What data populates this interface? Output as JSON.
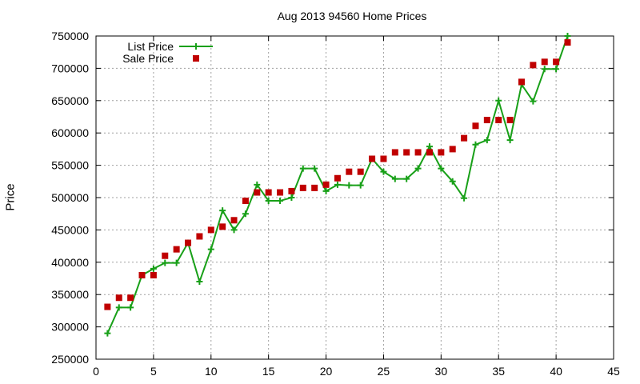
{
  "chart_data": {
    "type": "line",
    "title": "Aug 2013 94560 Home Prices",
    "xlabel": "",
    "ylabel": "Price",
    "xlim": [
      0,
      45
    ],
    "ylim": [
      250000,
      750000
    ],
    "x_ticks": [
      0,
      5,
      10,
      15,
      20,
      25,
      30,
      35,
      40,
      45
    ],
    "y_ticks": [
      250000,
      300000,
      350000,
      400000,
      450000,
      500000,
      550000,
      600000,
      650000,
      700000,
      750000
    ],
    "grid": true,
    "legend_position": "top-left",
    "series": [
      {
        "name": "List Price",
        "style": "line-with-plus-markers",
        "color": "#18a018",
        "x": [
          1,
          2,
          3,
          4,
          5,
          6,
          7,
          8,
          9,
          10,
          11,
          12,
          13,
          14,
          15,
          16,
          17,
          18,
          19,
          20,
          21,
          22,
          23,
          24,
          25,
          26,
          27,
          28,
          29,
          30,
          31,
          32,
          33,
          34,
          35,
          36,
          37,
          38,
          39,
          40,
          41
        ],
        "y": [
          290000,
          330000,
          330000,
          380000,
          390000,
          399000,
          399000,
          430000,
          370000,
          420000,
          480000,
          450000,
          475000,
          520000,
          495000,
          495000,
          500000,
          545000,
          545000,
          510000,
          520000,
          519000,
          519000,
          560000,
          540000,
          529000,
          529000,
          545000,
          579000,
          545000,
          525000,
          499000,
          582000,
          589000,
          650000,
          589000,
          675000,
          649000,
          699000,
          699000,
          750000
        ]
      },
      {
        "name": "Sale Price",
        "style": "square-markers",
        "color": "#c00000",
        "x": [
          1,
          2,
          3,
          4,
          5,
          6,
          7,
          8,
          9,
          10,
          11,
          12,
          13,
          14,
          15,
          16,
          17,
          18,
          19,
          20,
          21,
          22,
          23,
          24,
          25,
          26,
          27,
          28,
          29,
          30,
          31,
          32,
          33,
          34,
          35,
          36,
          37,
          38,
          39,
          40,
          41
        ],
        "y": [
          331000,
          345000,
          345000,
          380000,
          380000,
          410000,
          420000,
          430000,
          440000,
          450000,
          455000,
          465000,
          495000,
          508000,
          508000,
          508000,
          510000,
          515000,
          515000,
          520000,
          530000,
          540000,
          540000,
          560000,
          560000,
          570000,
          570000,
          570000,
          570000,
          570000,
          575000,
          592000,
          611000,
          620000,
          620000,
          620000,
          679000,
          705000,
          710000,
          710000,
          740000
        ]
      }
    ]
  }
}
